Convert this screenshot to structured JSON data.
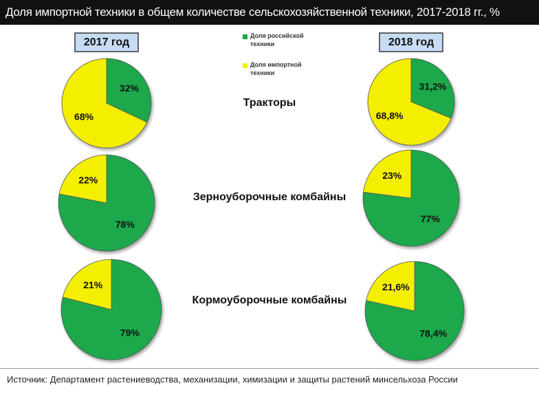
{
  "title": "Доля импортной техники в общем количестве сельскохозяйственной техники, 2017-2018 гг., %",
  "source": "Источник: Департамент растениеводства, механизации, химизации и защиты растений минсельхоза России",
  "chart_data": {
    "type": "pie",
    "years": [
      "2017 год",
      "2018 год"
    ],
    "rows": [
      "Тракторы",
      "Зерноуборочные комбайны",
      "Кормоуборочные комбайны"
    ],
    "series": [
      {
        "name": "Доля российской техники",
        "color": "#1ea84b"
      },
      {
        "name": "Доля импортной техники",
        "color": "#f4ee00"
      }
    ],
    "pies": [
      {
        "values": [
          32,
          68
        ],
        "value_labels": [
          "32%",
          "68%"
        ]
      },
      {
        "values": [
          31.2,
          68.8
        ],
        "value_labels": [
          "31,2%",
          "68,8%"
        ]
      },
      {
        "values": [
          78,
          22
        ],
        "value_labels": [
          "78%",
          "22%"
        ]
      },
      {
        "values": [
          77,
          23
        ],
        "value_labels": [
          "77%",
          "23%"
        ]
      },
      {
        "values": [
          79,
          21
        ],
        "value_labels": [
          "79%",
          "21%"
        ]
      },
      {
        "values": [
          78.4,
          21.6
        ],
        "value_labels": [
          "78,4%",
          "21,6%"
        ]
      }
    ]
  }
}
